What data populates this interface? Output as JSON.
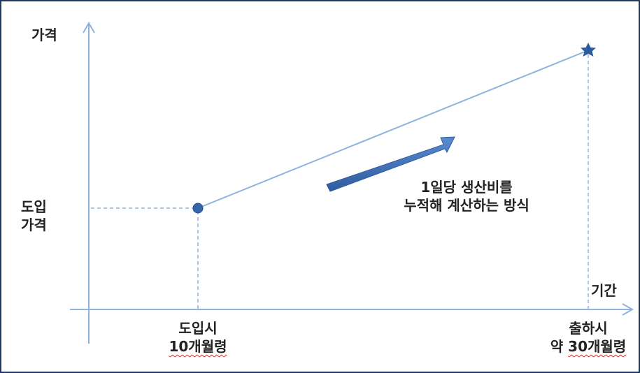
{
  "y_axis_label": "가격",
  "x_axis_label": "기간",
  "y_point_label": [
    "도입",
    "가격"
  ],
  "start_point": {
    "line1": "도입시",
    "line2": "10개월령"
  },
  "end_point": {
    "line1": "출하시",
    "line2_prefix": "약 ",
    "line2_value": "30개월령"
  },
  "annotation": {
    "line1": "1일당 생산비를",
    "line2": "누적해 계산하는 방식"
  },
  "colors": {
    "axis": "#8fb3dc",
    "line": "#8fb3dc",
    "marker": "#3566ad",
    "arrow": "#3e6fb6",
    "frame": "#1f3864"
  },
  "icons": {
    "start_marker": "circle-marker-icon",
    "end_marker": "star-marker-icon",
    "trend": "arrow-icon"
  }
}
